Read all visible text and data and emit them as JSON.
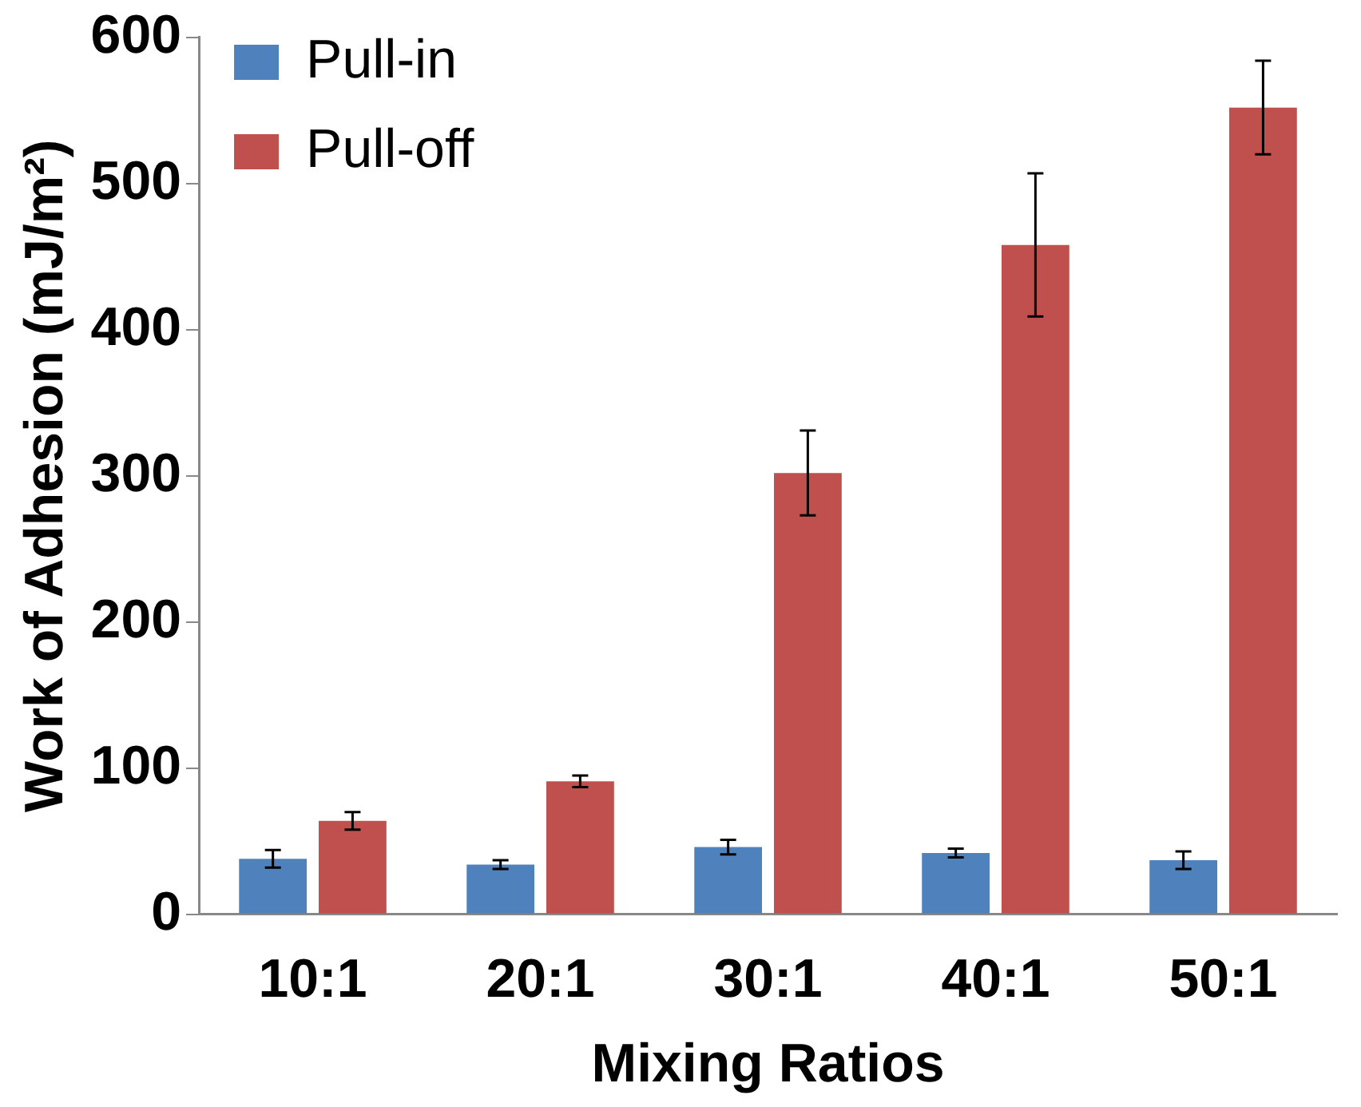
{
  "chart_data": {
    "type": "bar",
    "xlabel": "Mixing Ratios",
    "ylabel": "Work of Adhesion (mJ/m²)",
    "categories": [
      "10:1",
      "20:1",
      "30:1",
      "40:1",
      "50:1"
    ],
    "series": [
      {
        "name": "Pull-in",
        "color": "#4f81bd",
        "values": [
          38,
          34,
          46,
          42,
          37
        ],
        "errors": [
          6,
          3,
          5,
          3,
          6
        ]
      },
      {
        "name": "Pull-off",
        "color": "#c0504d",
        "values": [
          64,
          91,
          302,
          458,
          552
        ],
        "errors": [
          6,
          4,
          29,
          49,
          32
        ]
      }
    ],
    "ylim": [
      0,
      600
    ],
    "yticks": [
      0,
      100,
      200,
      300,
      400,
      500,
      600
    ],
    "grid": false,
    "legend": "top left"
  }
}
